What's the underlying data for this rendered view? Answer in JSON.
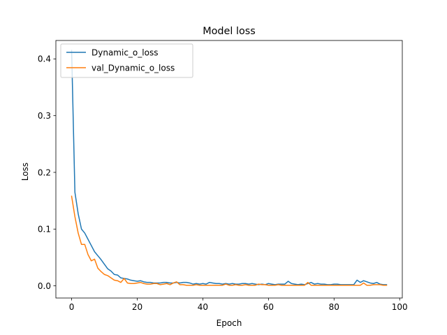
{
  "chart_data": {
    "type": "line",
    "title": "Model loss",
    "xlabel": "Epoch",
    "ylabel": "Loss",
    "xlim": [
      -4.8,
      100.8
    ],
    "ylim": [
      -0.0215,
      0.4325
    ],
    "xticks": [
      0,
      20,
      40,
      60,
      80,
      100
    ],
    "yticks": [
      0.0,
      0.1,
      0.2,
      0.3,
      0.4
    ],
    "ytick_labels": [
      "0.0",
      "0.1",
      "0.2",
      "0.3",
      "0.4"
    ],
    "legend_position": "top-left",
    "grid": false,
    "series": [
      {
        "name": "Dynamic_o_loss",
        "color": "#1f77b4",
        "x": [
          0,
          1,
          2,
          3,
          4,
          5,
          6,
          7,
          8,
          9,
          10,
          11,
          12,
          13,
          14,
          15,
          16,
          17,
          18,
          19,
          20,
          21,
          22,
          23,
          24,
          25,
          26,
          27,
          28,
          29,
          30,
          31,
          32,
          33,
          34,
          35,
          36,
          37,
          38,
          39,
          40,
          41,
          42,
          43,
          44,
          45,
          46,
          47,
          48,
          49,
          50,
          51,
          52,
          53,
          54,
          55,
          56,
          57,
          58,
          59,
          60,
          61,
          62,
          63,
          64,
          65,
          66,
          67,
          68,
          69,
          70,
          71,
          72,
          73,
          74,
          75,
          76,
          77,
          78,
          79,
          80,
          81,
          82,
          83,
          84,
          85,
          86,
          87,
          88,
          89,
          90,
          91,
          92,
          93,
          94,
          95,
          96
        ],
        "y": [
          0.415,
          0.165,
          0.127,
          0.1,
          0.093,
          0.082,
          0.071,
          0.06,
          0.053,
          0.046,
          0.038,
          0.03,
          0.026,
          0.02,
          0.019,
          0.014,
          0.013,
          0.012,
          0.01,
          0.009,
          0.008,
          0.009,
          0.007,
          0.006,
          0.006,
          0.005,
          0.005,
          0.005,
          0.006,
          0.006,
          0.005,
          0.005,
          0.006,
          0.005,
          0.006,
          0.006,
          0.005,
          0.003,
          0.004,
          0.003,
          0.004,
          0.003,
          0.006,
          0.005,
          0.004,
          0.004,
          0.003,
          0.004,
          0.003,
          0.004,
          0.003,
          0.003,
          0.004,
          0.004,
          0.003,
          0.004,
          0.003,
          0.002,
          0.003,
          0.002,
          0.004,
          0.003,
          0.002,
          0.003,
          0.003,
          0.003,
          0.008,
          0.004,
          0.003,
          0.002,
          0.003,
          0.002,
          0.004,
          0.006,
          0.003,
          0.004,
          0.003,
          0.003,
          0.002,
          0.002,
          0.003,
          0.003,
          0.002,
          0.002,
          0.002,
          0.002,
          0.002,
          0.01,
          0.006,
          0.009,
          0.007,
          0.005,
          0.004,
          0.006,
          0.003,
          0.002,
          0.002
        ]
      },
      {
        "name": "val_Dynamic_o_loss",
        "color": "#ff7f0e",
        "x": [
          0,
          1,
          2,
          3,
          4,
          5,
          6,
          7,
          8,
          9,
          10,
          11,
          12,
          13,
          14,
          15,
          16,
          17,
          18,
          19,
          20,
          21,
          22,
          23,
          24,
          25,
          26,
          27,
          28,
          29,
          30,
          31,
          32,
          33,
          34,
          35,
          36,
          37,
          38,
          39,
          40,
          41,
          42,
          43,
          44,
          45,
          46,
          47,
          48,
          49,
          50,
          51,
          52,
          53,
          54,
          55,
          56,
          57,
          58,
          59,
          60,
          61,
          62,
          63,
          64,
          65,
          66,
          67,
          68,
          69,
          70,
          71,
          72,
          73,
          74,
          75,
          76,
          77,
          78,
          79,
          80,
          81,
          82,
          83,
          84,
          85,
          86,
          87,
          88,
          89,
          90,
          91,
          92,
          93,
          94,
          95,
          96
        ],
        "y": [
          0.158,
          0.122,
          0.093,
          0.073,
          0.073,
          0.055,
          0.044,
          0.047,
          0.031,
          0.025,
          0.02,
          0.018,
          0.014,
          0.01,
          0.009,
          0.006,
          0.013,
          0.005,
          0.004,
          0.004,
          0.005,
          0.006,
          0.004,
          0.003,
          0.003,
          0.004,
          0.004,
          0.002,
          0.003,
          0.004,
          0.002,
          0.005,
          0.007,
          0.002,
          0.002,
          0.001,
          0.001,
          0.001,
          0.002,
          0.001,
          0.001,
          0.001,
          0.001,
          0.001,
          0.001,
          0.001,
          0.001,
          0.003,
          0.001,
          0.001,
          0.002,
          0.001,
          0.001,
          0.002,
          0.001,
          0.001,
          0.001,
          0.003,
          0.002,
          0.002,
          0.001,
          0.001,
          0.001,
          0.002,
          0.001,
          0.001,
          0.001,
          0.001,
          0.001,
          0.001,
          0.001,
          0.001,
          0.006,
          0.001,
          0.001,
          0.001,
          0.001,
          0.001,
          0.001,
          0.001,
          0.001,
          0.001,
          0.001,
          0.001,
          0.001,
          0.001,
          0.001,
          0.001,
          0.001,
          0.005,
          0.001,
          0.001,
          0.002,
          0.002,
          0.002,
          0.001,
          0.001
        ]
      }
    ]
  }
}
